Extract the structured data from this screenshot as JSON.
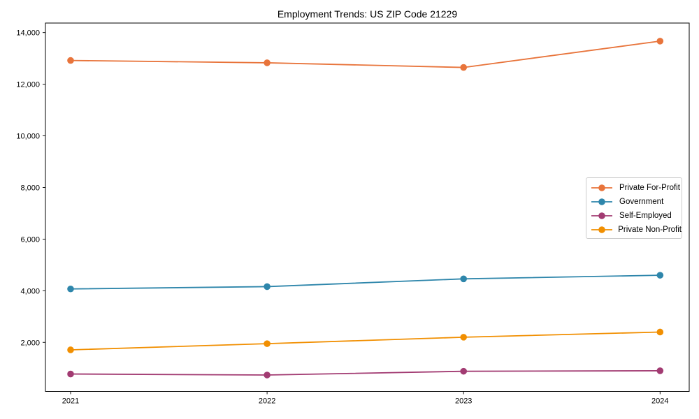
{
  "figure": {
    "background": "#ffffff",
    "axis_color": "#000000",
    "legend_border_color": "#cccccc"
  },
  "chart_data": {
    "type": "line",
    "title": "Employment Trends: US ZIP Code 21229",
    "x": [
      2021,
      2022,
      2023,
      2024
    ],
    "x_tick_labels": [
      "2021",
      "2022",
      "2023",
      "2024"
    ],
    "y_ticks": [
      2000,
      4000,
      6000,
      8000,
      10000,
      12000,
      14000
    ],
    "y_tick_format": "comma",
    "ylim": [
      100,
      14370
    ],
    "xlabel": "",
    "ylabel": "",
    "grid": false,
    "legend_position": "center-right",
    "series": [
      {
        "name": "Private For-Profit",
        "color": "#E8743B",
        "values": [
          12920,
          12830,
          12650,
          13670
        ]
      },
      {
        "name": "Government",
        "color": "#2E86AB",
        "values": [
          4070,
          4160,
          4460,
          4600
        ]
      },
      {
        "name": "Self-Employed",
        "color": "#A23B72",
        "values": [
          775,
          735,
          880,
          900
        ]
      },
      {
        "name": "Private Non-Profit",
        "color": "#F18F01",
        "values": [
          1710,
          1950,
          2200,
          2400
        ]
      }
    ]
  }
}
